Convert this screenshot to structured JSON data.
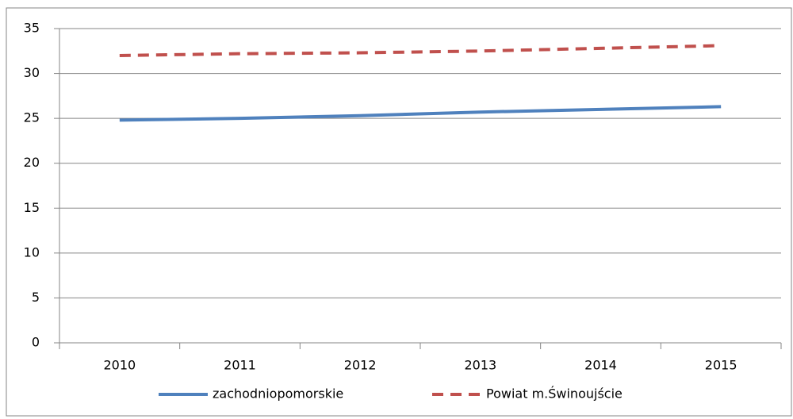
{
  "chart_data": {
    "type": "line",
    "categories": [
      "2010",
      "2011",
      "2012",
      "2013",
      "2014",
      "2015"
    ],
    "series": [
      {
        "name": "zachodniopomorskie",
        "color": "#4f81bd",
        "dash": false,
        "values": [
          24.8,
          25.0,
          25.3,
          25.7,
          26.0,
          26.3
        ]
      },
      {
        "name": "Powiat m.Świnoujście",
        "color": "#c0504d",
        "dash": true,
        "values": [
          32.0,
          32.2,
          32.3,
          32.5,
          32.8,
          33.1
        ]
      }
    ],
    "ylim": [
      0,
      35
    ],
    "yticks": [
      0,
      5,
      10,
      15,
      20,
      25,
      30,
      35
    ],
    "grid": true,
    "legend": "bottom"
  }
}
